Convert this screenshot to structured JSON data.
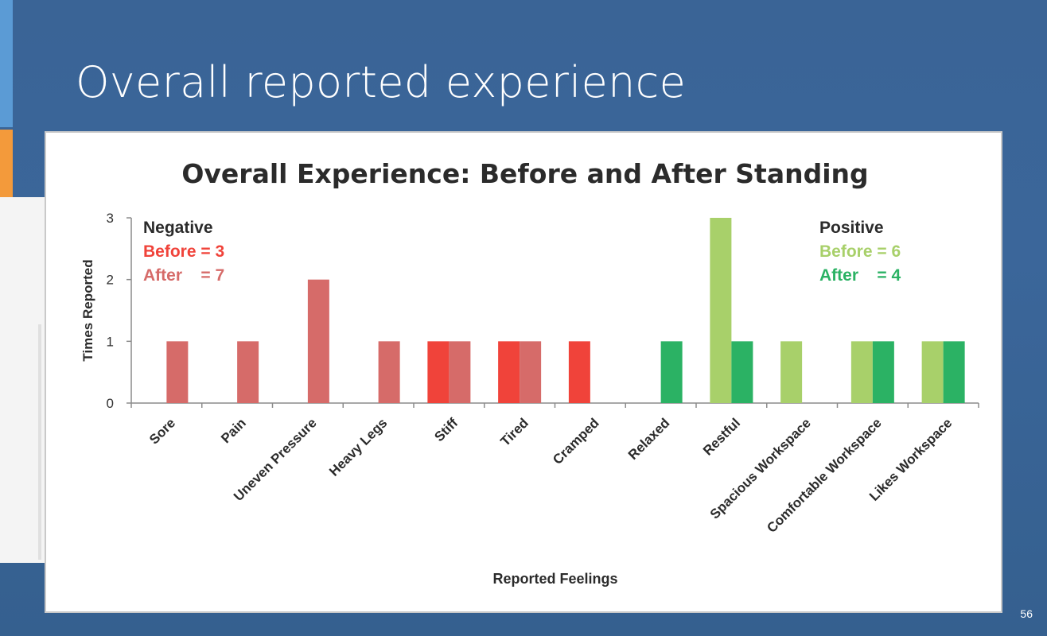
{
  "slide": {
    "title": "Overall reported experience",
    "page_number": "56"
  },
  "colors": {
    "neg_before": "#f0433a",
    "neg_after": "#d66b69",
    "pos_before": "#a8d06a",
    "pos_after": "#2bb264"
  },
  "chart_data": {
    "type": "bar",
    "title": "Overall Experience: Before and After Standing",
    "xlabel": "Reported Feelings",
    "ylabel": "Times Reported",
    "ylim": [
      0,
      3
    ],
    "yticks": [
      0,
      1,
      2,
      3
    ],
    "categories": [
      "Sore",
      "Pain",
      "Uneven Pressure",
      "Heavy Legs",
      "Stiff",
      "Tired",
      "Cramped",
      "Relaxed",
      "Restful",
      "Spacious Workspace",
      "Comfortable Workspace",
      "Likes Workspace"
    ],
    "series": [
      {
        "values": [
          0,
          0,
          0,
          0,
          1,
          1,
          1,
          0,
          3,
          1,
          1,
          1
        ]
      },
      {
        "values": [
          1,
          1,
          2,
          1,
          1,
          1,
          0,
          1,
          1,
          0,
          1,
          1
        ]
      }
    ],
    "category_groups": [
      "negative",
      "negative",
      "negative",
      "negative",
      "negative",
      "negative",
      "negative",
      "positive",
      "positive",
      "positive",
      "positive",
      "positive"
    ],
    "annotations": {
      "negative": {
        "heading": "Negative",
        "before": "Before = 3",
        "after": "After    = 7"
      },
      "positive": {
        "heading": "Positive",
        "before": "Before = 6",
        "after": "After    = 4"
      }
    },
    "grid": false,
    "legend": "none"
  }
}
